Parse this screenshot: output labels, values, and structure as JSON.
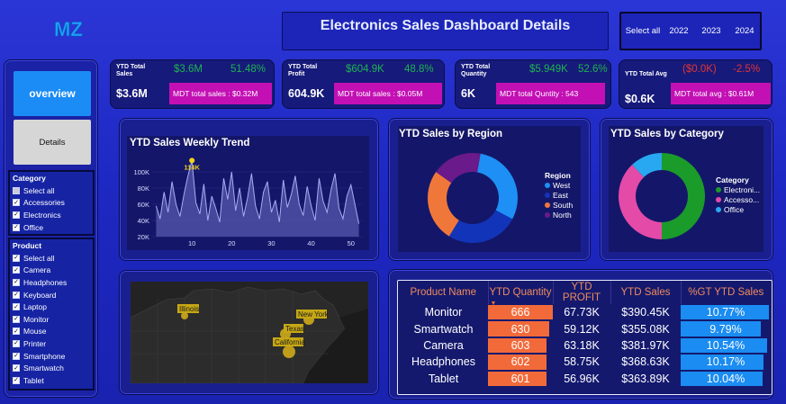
{
  "header": {
    "logo_text": "MZ",
    "title": "Electronics Sales Dashboard Details",
    "year_filter": [
      "Select all",
      "2022",
      "2023",
      "2024"
    ]
  },
  "nav": {
    "overview_label": "overview",
    "details_label": "Details"
  },
  "category_slicer": {
    "heading": "Category",
    "items": [
      {
        "label": "Select all",
        "state": "partial"
      },
      {
        "label": "Accessories",
        "state": "checked"
      },
      {
        "label": "Electronics",
        "state": "checked"
      },
      {
        "label": "Office",
        "state": "checked"
      }
    ]
  },
  "product_slicer": {
    "heading": "Product",
    "items": [
      {
        "label": "Select all",
        "state": "checked"
      },
      {
        "label": "Camera",
        "state": "checked"
      },
      {
        "label": "Headphones",
        "state": "checked"
      },
      {
        "label": "Keyboard",
        "state": "checked"
      },
      {
        "label": "Laptop",
        "state": "checked"
      },
      {
        "label": "Monitor",
        "state": "checked"
      },
      {
        "label": "Mouse",
        "state": "checked"
      },
      {
        "label": "Printer",
        "state": "checked"
      },
      {
        "label": "Smartphone",
        "state": "checked"
      },
      {
        "label": "Smartwatch",
        "state": "checked"
      },
      {
        "label": "Tablet",
        "state": "checked"
      }
    ]
  },
  "kpis": {
    "sales": {
      "label": "YTD Total Sales",
      "value": "$3.6M",
      "ly": "$3.6M",
      "pct": "51.48%",
      "mdt": "MDT total sales : $0.32M"
    },
    "profit": {
      "label": "YTD Total Profit",
      "value": "604.9K",
      "ly": "$604.9K",
      "pct": "48.8%",
      "mdt": "MDT total sales : $0.05M"
    },
    "quantity": {
      "label": "YTD Total Quantity",
      "value": "6K",
      "ly": "$5.949K",
      "pct": "52.6%",
      "mdt": "MDT total Quntity : 543"
    },
    "avg": {
      "label": "YTD Total Avg",
      "value": "$0.6K",
      "ly": "($0.0K)",
      "pct": "-2.5%",
      "mdt": "MDT total avg : $0.61M"
    }
  },
  "weekly_trend": {
    "title": "YTD Sales Weekly Trend",
    "peak_label": "114K"
  },
  "region_chart": {
    "title": "YTD Sales by Region",
    "legend_title": "Region"
  },
  "category_chart": {
    "title": "YTD Sales by Category",
    "legend_title": "Category"
  },
  "map": {
    "labels": [
      "Illinois",
      "New York",
      "Texas",
      "California"
    ]
  },
  "colors": {
    "west": "#1e8ff5",
    "east": "#1234b8",
    "south": "#f0773a",
    "north": "#6a1a8a",
    "electronics": "#1a9b2a",
    "accessories": "#e44aa8",
    "office": "#28a8f0"
  },
  "table": {
    "headers": [
      "Product Name",
      "YTD Quantity",
      "YTD PROFIT",
      "YTD Sales",
      "%GT YTD Sales"
    ],
    "rows": [
      {
        "name": "Monitor",
        "qty": "666",
        "qty_n": 666,
        "profit": "67.73K",
        "sales": "$390.45K",
        "gt": "10.77%",
        "gt_n": 10.77
      },
      {
        "name": "Smartwatch",
        "qty": "630",
        "qty_n": 630,
        "profit": "59.12K",
        "sales": "$355.08K",
        "gt": "9.79%",
        "gt_n": 9.79
      },
      {
        "name": "Camera",
        "qty": "603",
        "qty_n": 603,
        "profit": "63.18K",
        "sales": "$381.97K",
        "gt": "10.54%",
        "gt_n": 10.54
      },
      {
        "name": "Headphones",
        "qty": "602",
        "qty_n": 602,
        "profit": "58.75K",
        "sales": "$368.63K",
        "gt": "10.17%",
        "gt_n": 10.17
      },
      {
        "name": "Tablet",
        "qty": "601",
        "qty_n": 601,
        "profit": "56.96K",
        "sales": "$363.89K",
        "gt": "10.04%",
        "gt_n": 10.04
      }
    ]
  },
  "chart_data": [
    {
      "type": "area",
      "title": "YTD Sales Weekly Trend",
      "xlabel": "",
      "ylabel": "",
      "xlim": [
        0,
        53
      ],
      "ylim": [
        20000,
        120000
      ],
      "xticks": [
        10,
        20,
        30,
        40,
        50
      ],
      "xtick_labels": [
        "10",
        "20",
        "30",
        "40",
        "50"
      ],
      "yticks": [
        20000,
        40000,
        60000,
        80000,
        100000
      ],
      "ytick_labels": [
        "20K",
        "40K",
        "60K",
        "80K",
        "100K"
      ],
      "annotation": {
        "x": 10,
        "y": 114000,
        "label": "114K"
      },
      "x": [
        1,
        2,
        3,
        4,
        5,
        6,
        7,
        8,
        9,
        10,
        11,
        12,
        13,
        14,
        15,
        16,
        17,
        18,
        19,
        20,
        21,
        22,
        23,
        24,
        25,
        26,
        27,
        28,
        29,
        30,
        31,
        32,
        33,
        34,
        35,
        36,
        37,
        38,
        39,
        40,
        41,
        42,
        43,
        44,
        45,
        46,
        47,
        48,
        49,
        50,
        51,
        52
      ],
      "values": [
        58000,
        42000,
        75000,
        50000,
        88000,
        60000,
        45000,
        72000,
        95000,
        114000,
        62000,
        48000,
        85000,
        40000,
        70000,
        55000,
        38000,
        92000,
        66000,
        100000,
        52000,
        80000,
        45000,
        68000,
        98000,
        58000,
        42000,
        75000,
        88000,
        50000,
        65000,
        38000,
        90000,
        56000,
        72000,
        95000,
        60000,
        46000,
        82000,
        58000,
        40000,
        92000,
        64000,
        50000,
        78000,
        98000,
        55000,
        42000,
        70000,
        84000,
        60000,
        36000
      ]
    },
    {
      "type": "pie",
      "title": "YTD Sales by Region",
      "legend_title": "Region",
      "categories": [
        "West",
        "East",
        "South",
        "North"
      ],
      "values": [
        30,
        26,
        26,
        18
      ]
    },
    {
      "type": "pie",
      "title": "YTD Sales by Category",
      "legend_title": "Category",
      "categories": [
        "Electroni...",
        "Accesso...",
        "Office"
      ],
      "values": [
        50,
        38,
        12
      ]
    }
  ]
}
